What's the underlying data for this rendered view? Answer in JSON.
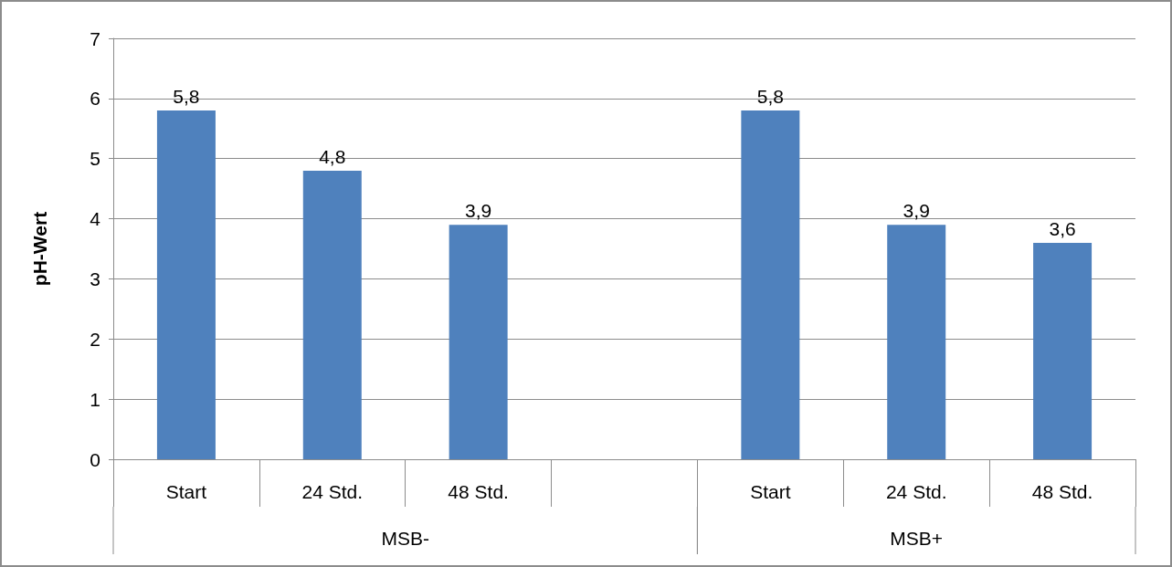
{
  "chart_data": {
    "type": "bar",
    "ylabel": "pH-Wert",
    "categories": [
      "Start",
      "24 Std.",
      "48 Std.",
      null,
      "Start",
      "24 Std.",
      "48 Std."
    ],
    "values": [
      5.8,
      4.8,
      3.9,
      null,
      5.8,
      3.9,
      3.6
    ],
    "value_labels": [
      "5,8",
      "4,8",
      "3,9",
      null,
      "5,8",
      "3,9",
      "3,6"
    ],
    "color": "#4f81bd",
    "annotations": [
      "MSB-",
      "MSB+"
    ],
    "ylim": [
      0,
      7
    ],
    "yticks": [
      0,
      1,
      2,
      3,
      4,
      5,
      6,
      7
    ],
    "grid": "y"
  }
}
